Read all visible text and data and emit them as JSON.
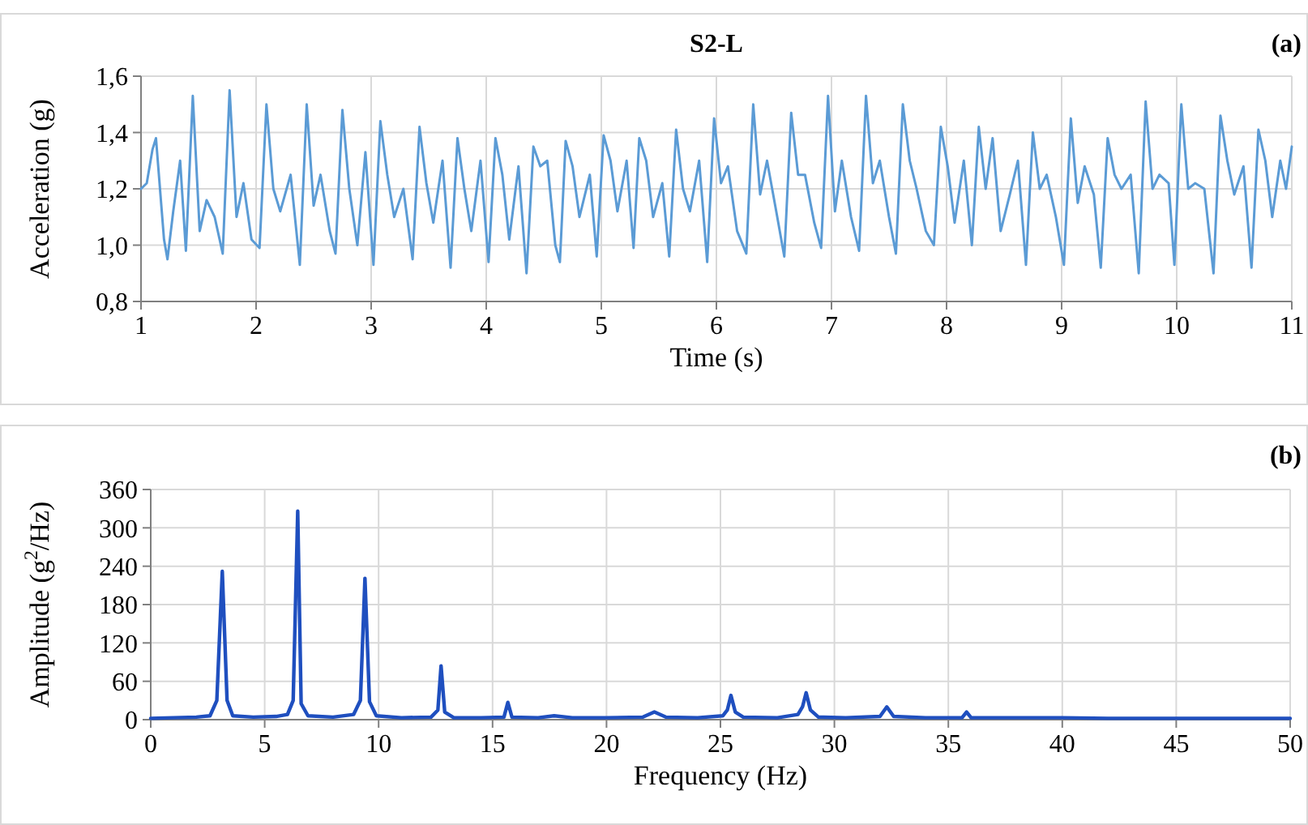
{
  "chart_data": [
    {
      "type": "line",
      "title": "S2-L",
      "xlabel": "Time (s)",
      "ylabel": "Acceleration (g)",
      "annotations": [
        "(a)"
      ],
      "xlim": [
        1,
        11
      ],
      "xticks": [
        1,
        2,
        3,
        4,
        5,
        6,
        7,
        8,
        9,
        10,
        11
      ],
      "ylim": [
        0.8,
        1.6
      ],
      "yticks": [
        {
          "value": 0.8,
          "label": "0,8"
        },
        {
          "value": 1.0,
          "label": "1,0"
        },
        {
          "value": 1.2,
          "label": "1,2"
        },
        {
          "value": 1.4,
          "label": "1,4"
        },
        {
          "value": 1.6,
          "label": "1,6"
        }
      ],
      "grid": true,
      "series": [
        {
          "color": "#5b9bd5",
          "x": [
            1.0,
            1.05,
            1.1,
            1.13,
            1.2,
            1.23,
            1.28,
            1.34,
            1.39,
            1.45,
            1.51,
            1.57,
            1.64,
            1.71,
            1.77,
            1.83,
            1.89,
            1.96,
            2.03,
            2.09,
            2.15,
            2.21,
            2.3,
            2.38,
            2.44,
            2.5,
            2.56,
            2.64,
            2.69,
            2.75,
            2.81,
            2.88,
            2.95,
            3.02,
            3.08,
            3.14,
            3.2,
            3.28,
            3.36,
            3.42,
            3.48,
            3.54,
            3.62,
            3.69,
            3.75,
            3.81,
            3.87,
            3.95,
            4.02,
            4.08,
            4.14,
            4.2,
            4.28,
            4.35,
            4.41,
            4.47,
            4.53,
            4.6,
            4.64,
            4.69,
            4.75,
            4.81,
            4.9,
            4.96,
            5.02,
            5.08,
            5.14,
            5.22,
            5.28,
            5.33,
            5.39,
            5.45,
            5.53,
            5.59,
            5.65,
            5.71,
            5.77,
            5.85,
            5.92,
            5.98,
            6.04,
            6.1,
            6.18,
            6.26,
            6.32,
            6.38,
            6.44,
            6.52,
            6.59,
            6.65,
            6.71,
            6.77,
            6.85,
            6.91,
            6.97,
            7.03,
            7.09,
            7.17,
            7.24,
            7.3,
            7.36,
            7.42,
            7.5,
            7.56,
            7.62,
            7.68,
            7.74,
            7.82,
            7.89,
            7.95,
            8.01,
            8.07,
            8.15,
            8.22,
            8.28,
            8.34,
            8.4,
            8.47,
            8.55,
            8.62,
            8.69,
            8.75,
            8.81,
            8.87,
            8.95,
            9.02,
            9.08,
            9.14,
            9.2,
            9.28,
            9.34,
            9.4,
            9.46,
            9.52,
            9.6,
            9.67,
            9.73,
            9.79,
            9.85,
            9.93,
            9.98,
            10.04,
            10.1,
            10.16,
            10.24,
            10.32,
            10.38,
            10.44,
            10.5,
            10.58,
            10.65,
            10.71,
            10.77,
            10.83,
            10.9,
            10.95,
            11.0
          ],
          "values": [
            1.2,
            1.22,
            1.34,
            1.38,
            1.02,
            0.95,
            1.12,
            1.3,
            0.98,
            1.53,
            1.05,
            1.16,
            1.1,
            0.97,
            1.55,
            1.1,
            1.22,
            1.02,
            0.99,
            1.5,
            1.2,
            1.12,
            1.25,
            0.93,
            1.5,
            1.14,
            1.25,
            1.05,
            0.97,
            1.48,
            1.2,
            1.0,
            1.33,
            0.93,
            1.44,
            1.25,
            1.1,
            1.2,
            0.95,
            1.42,
            1.22,
            1.08,
            1.3,
            0.92,
            1.38,
            1.2,
            1.05,
            1.3,
            0.94,
            1.38,
            1.25,
            1.02,
            1.28,
            0.9,
            1.35,
            1.28,
            1.3,
            1.0,
            0.94,
            1.37,
            1.28,
            1.1,
            1.25,
            0.96,
            1.39,
            1.3,
            1.12,
            1.3,
            0.99,
            1.38,
            1.3,
            1.1,
            1.22,
            0.96,
            1.41,
            1.2,
            1.12,
            1.3,
            0.94,
            1.45,
            1.22,
            1.28,
            1.05,
            0.97,
            1.5,
            1.18,
            1.3,
            1.12,
            0.96,
            1.47,
            1.25,
            1.25,
            1.08,
            0.99,
            1.53,
            1.12,
            1.3,
            1.1,
            0.98,
            1.53,
            1.22,
            1.3,
            1.1,
            0.97,
            1.5,
            1.3,
            1.2,
            1.05,
            1.0,
            1.42,
            1.28,
            1.08,
            1.3,
            1.0,
            1.42,
            1.2,
            1.38,
            1.05,
            1.18,
            1.3,
            0.93,
            1.4,
            1.2,
            1.25,
            1.1,
            0.93,
            1.45,
            1.15,
            1.28,
            1.18,
            0.92,
            1.38,
            1.25,
            1.2,
            1.25,
            0.9,
            1.51,
            1.2,
            1.25,
            1.22,
            0.93,
            1.5,
            1.2,
            1.22,
            1.2,
            0.9,
            1.46,
            1.3,
            1.18,
            1.28,
            0.92,
            1.41,
            1.3,
            1.1,
            1.3,
            1.2,
            1.35
          ]
        }
      ]
    },
    {
      "type": "line",
      "xlabel": "Frequency (Hz)",
      "ylabel": "Amplitude (g$^{2}$/Hz)",
      "annotations": [
        "(b)"
      ],
      "xlim": [
        0,
        50
      ],
      "xticks": [
        0,
        5,
        10,
        15,
        20,
        25,
        30,
        35,
        40,
        45,
        50
      ],
      "ylim": [
        0,
        360
      ],
      "yticks": [
        0,
        60,
        120,
        180,
        240,
        300,
        360
      ],
      "grid": true,
      "series": [
        {
          "color": "#1f4fbf",
          "x": [
            0,
            1,
            2,
            2.6,
            2.9,
            3.14,
            3.35,
            3.6,
            4.5,
            5.5,
            6.0,
            6.25,
            6.45,
            6.6,
            6.9,
            8,
            8.9,
            9.2,
            9.4,
            9.6,
            9.9,
            11,
            12.3,
            12.6,
            12.74,
            12.9,
            13.3,
            14.5,
            15.5,
            15.67,
            15.85,
            17,
            17.7,
            18.5,
            20,
            21.6,
            22.1,
            22.6,
            24,
            25.1,
            25.3,
            25.46,
            25.65,
            26,
            27.5,
            28.4,
            28.6,
            28.76,
            28.95,
            29.3,
            30.5,
            32,
            32.3,
            32.6,
            34,
            35.6,
            35.8,
            36,
            38,
            40,
            42,
            45,
            48,
            50
          ],
          "values": [
            2,
            3,
            4,
            6,
            30,
            232,
            30,
            6,
            4,
            5,
            8,
            30,
            326,
            25,
            6,
            4,
            8,
            30,
            221,
            28,
            6,
            3,
            4,
            15,
            84,
            12,
            3,
            3,
            4,
            27,
            4,
            3,
            6,
            3,
            3,
            4,
            12,
            4,
            3,
            6,
            15,
            38,
            12,
            4,
            3,
            8,
            20,
            42,
            15,
            4,
            3,
            5,
            20,
            5,
            3,
            3,
            12,
            3,
            3,
            3,
            2,
            2,
            2,
            2
          ]
        }
      ]
    }
  ]
}
